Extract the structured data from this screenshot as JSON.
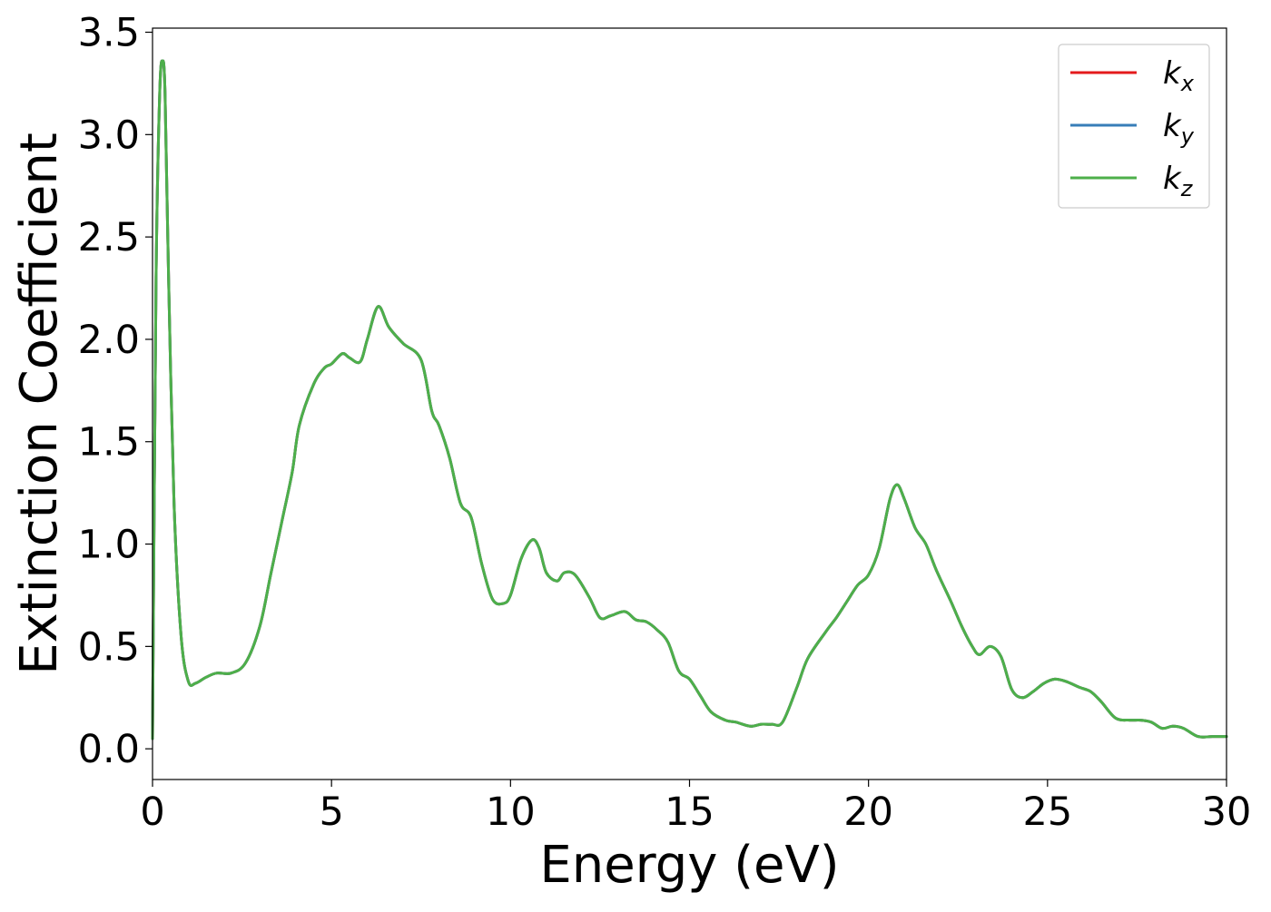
{
  "chart_data": {
    "type": "line",
    "title": "",
    "xlabel": "Energy (eV)",
    "ylabel": "Extinction Coefficient",
    "xlim": [
      0,
      30
    ],
    "ylim": [
      -0.15,
      3.52
    ],
    "xticks": [
      0,
      5,
      10,
      15,
      20,
      25,
      30
    ],
    "xtick_labels": [
      "0",
      "5",
      "10",
      "15",
      "20",
      "25",
      "30"
    ],
    "yticks": [
      0.0,
      0.5,
      1.0,
      1.5,
      2.0,
      2.5,
      3.0,
      3.5
    ],
    "ytick_labels": [
      "0.0",
      "0.5",
      "1.0",
      "1.5",
      "2.0",
      "2.5",
      "3.0",
      "3.5"
    ],
    "grid": false,
    "legend_position": "top-right",
    "x": [
      0,
      0.1,
      0.2,
      0.28,
      0.35,
      0.45,
      0.6,
      0.8,
      1.0,
      1.2,
      1.5,
      1.8,
      2.2,
      2.6,
      3.0,
      3.3,
      3.6,
      3.9,
      4.1,
      4.5,
      4.8,
      5.0,
      5.3,
      5.5,
      5.8,
      6.0,
      6.3,
      6.6,
      7.0,
      7.5,
      7.8,
      8.0,
      8.3,
      8.6,
      8.9,
      9.2,
      9.5,
      9.8,
      10.0,
      10.3,
      10.6,
      10.8,
      11.0,
      11.3,
      11.5,
      11.8,
      12.2,
      12.5,
      12.8,
      13.2,
      13.5,
      13.8,
      14.1,
      14.4,
      14.7,
      15.0,
      15.3,
      15.6,
      16.0,
      16.3,
      16.7,
      17.0,
      17.3,
      17.6,
      18.0,
      18.3,
      18.8,
      19.1,
      19.4,
      19.7,
      20.0,
      20.3,
      20.6,
      20.8,
      21.0,
      21.3,
      21.6,
      21.9,
      22.3,
      22.6,
      22.9,
      23.1,
      23.4,
      23.7,
      24.0,
      24.3,
      24.6,
      24.9,
      25.2,
      25.5,
      25.9,
      26.2,
      26.5,
      26.9,
      27.3,
      27.6,
      27.9,
      28.2,
      28.5,
      28.8,
      29.2,
      29.6,
      30.0
    ],
    "series": [
      {
        "name": "k",
        "subscript": "x",
        "color": "#e41a1c",
        "values": [
          0.05,
          2.3,
          3.2,
          3.36,
          3.2,
          2.3,
          1.2,
          0.55,
          0.33,
          0.32,
          0.35,
          0.37,
          0.37,
          0.42,
          0.6,
          0.85,
          1.1,
          1.35,
          1.58,
          1.78,
          1.86,
          1.88,
          1.93,
          1.91,
          1.89,
          2.0,
          2.16,
          2.06,
          1.98,
          1.9,
          1.65,
          1.58,
          1.42,
          1.2,
          1.13,
          0.9,
          0.73,
          0.71,
          0.75,
          0.93,
          1.02,
          0.98,
          0.86,
          0.82,
          0.86,
          0.85,
          0.74,
          0.64,
          0.65,
          0.67,
          0.63,
          0.62,
          0.58,
          0.52,
          0.38,
          0.34,
          0.26,
          0.18,
          0.14,
          0.13,
          0.11,
          0.12,
          0.12,
          0.13,
          0.3,
          0.44,
          0.57,
          0.64,
          0.72,
          0.8,
          0.85,
          0.98,
          1.22,
          1.29,
          1.22,
          1.08,
          1.0,
          0.87,
          0.72,
          0.6,
          0.5,
          0.46,
          0.5,
          0.45,
          0.29,
          0.25,
          0.28,
          0.32,
          0.34,
          0.33,
          0.3,
          0.28,
          0.23,
          0.15,
          0.14,
          0.14,
          0.13,
          0.1,
          0.11,
          0.1,
          0.06,
          0.06,
          0.06
        ]
      },
      {
        "name": "k",
        "subscript": "y",
        "color": "#377eb8",
        "values": [
          0.05,
          2.3,
          3.2,
          3.36,
          3.2,
          2.3,
          1.2,
          0.55,
          0.33,
          0.32,
          0.35,
          0.37,
          0.37,
          0.42,
          0.6,
          0.85,
          1.1,
          1.35,
          1.58,
          1.78,
          1.86,
          1.88,
          1.93,
          1.91,
          1.89,
          2.0,
          2.16,
          2.06,
          1.98,
          1.9,
          1.65,
          1.58,
          1.42,
          1.2,
          1.13,
          0.9,
          0.73,
          0.71,
          0.75,
          0.93,
          1.02,
          0.98,
          0.86,
          0.82,
          0.86,
          0.85,
          0.74,
          0.64,
          0.65,
          0.67,
          0.63,
          0.62,
          0.58,
          0.52,
          0.38,
          0.34,
          0.26,
          0.18,
          0.14,
          0.13,
          0.11,
          0.12,
          0.12,
          0.13,
          0.3,
          0.44,
          0.57,
          0.64,
          0.72,
          0.8,
          0.85,
          0.98,
          1.22,
          1.29,
          1.22,
          1.08,
          1.0,
          0.87,
          0.72,
          0.6,
          0.5,
          0.46,
          0.5,
          0.45,
          0.29,
          0.25,
          0.28,
          0.32,
          0.34,
          0.33,
          0.3,
          0.28,
          0.23,
          0.15,
          0.14,
          0.14,
          0.13,
          0.1,
          0.11,
          0.1,
          0.06,
          0.06,
          0.06
        ]
      },
      {
        "name": "k",
        "subscript": "z",
        "color": "#4daf4a",
        "values": [
          0.05,
          2.3,
          3.2,
          3.36,
          3.2,
          2.3,
          1.2,
          0.55,
          0.33,
          0.32,
          0.35,
          0.37,
          0.37,
          0.42,
          0.6,
          0.85,
          1.1,
          1.35,
          1.58,
          1.78,
          1.86,
          1.88,
          1.93,
          1.91,
          1.89,
          2.0,
          2.16,
          2.06,
          1.98,
          1.9,
          1.65,
          1.58,
          1.42,
          1.2,
          1.13,
          0.9,
          0.73,
          0.71,
          0.75,
          0.93,
          1.02,
          0.98,
          0.86,
          0.82,
          0.86,
          0.85,
          0.74,
          0.64,
          0.65,
          0.67,
          0.63,
          0.62,
          0.58,
          0.52,
          0.38,
          0.34,
          0.26,
          0.18,
          0.14,
          0.13,
          0.11,
          0.12,
          0.12,
          0.13,
          0.3,
          0.44,
          0.57,
          0.64,
          0.72,
          0.8,
          0.85,
          0.98,
          1.22,
          1.29,
          1.22,
          1.08,
          1.0,
          0.87,
          0.72,
          0.6,
          0.5,
          0.46,
          0.5,
          0.45,
          0.29,
          0.25,
          0.28,
          0.32,
          0.34,
          0.33,
          0.3,
          0.28,
          0.23,
          0.15,
          0.14,
          0.14,
          0.13,
          0.1,
          0.11,
          0.1,
          0.06,
          0.06,
          0.06
        ]
      }
    ]
  }
}
